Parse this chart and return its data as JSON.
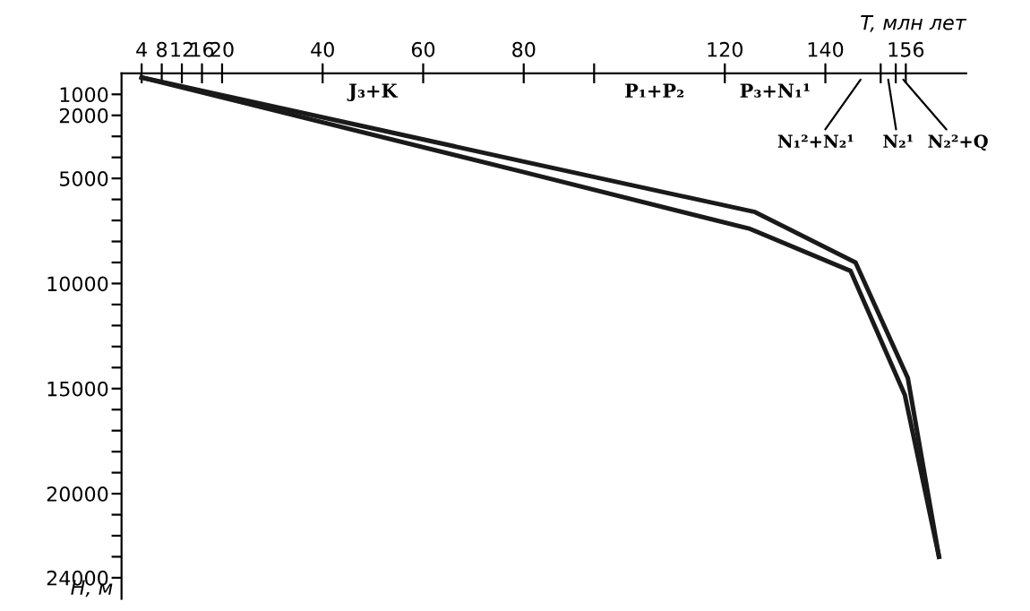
{
  "chart_data": {
    "type": "line",
    "xlabel": "T, млн лет",
    "ylabel": "H, м",
    "series": [
      {
        "color": "#1a1a1a",
        "x": [
          4,
          80,
          126,
          146,
          156.4,
          162.6
        ],
        "values": [
          200,
          4200,
          6600,
          9000,
          14500,
          23000
        ]
      },
      {
        "color": "#1a1a1a",
        "x": [
          4,
          80,
          125,
          145,
          155.8,
          162.6
        ],
        "values": [
          200,
          4700,
          7400,
          9400,
          15300,
          23000
        ]
      }
    ],
    "xlim": [
      0,
      168
    ],
    "ylim": [
      25000,
      0
    ],
    "xticks": [
      4,
      8,
      12,
      16,
      20,
      40,
      60,
      80,
      {
        "value": 94,
        "label": null
      },
      120,
      140,
      {
        "value": 151,
        "label": null
      },
      {
        "value": 154,
        "label": null
      },
      156
    ],
    "yticks": [
      1000,
      2000,
      {
        "value": 3000,
        "label": null
      },
      {
        "value": 4000,
        "label": null
      },
      5000,
      {
        "value": 6000,
        "label": null
      },
      {
        "value": 7000,
        "label": null
      },
      {
        "value": 8000,
        "label": null
      },
      {
        "value": 9000,
        "label": null
      },
      10000,
      {
        "value": 11000,
        "label": null
      },
      {
        "value": 12000,
        "label": null
      },
      {
        "value": 13000,
        "label": null
      },
      {
        "value": 14000,
        "label": null
      },
      15000,
      {
        "value": 16000,
        "label": null
      },
      {
        "value": 17000,
        "label": null
      },
      {
        "value": 18000,
        "label": null
      },
      {
        "value": 19000,
        "label": null
      },
      20000,
      {
        "value": 21000,
        "label": null
      },
      {
        "value": 22000,
        "label": null
      },
      {
        "value": 23000,
        "label": null
      },
      24000
    ],
    "annotations": [
      "J₃+K",
      "P₁+P₂",
      "P₃+N₁¹",
      "N₁²+N₂¹",
      "N₂¹",
      "N₂²+Q"
    ],
    "grid": false,
    "legend": false,
    "marker": "none",
    "line_style": "solid"
  }
}
